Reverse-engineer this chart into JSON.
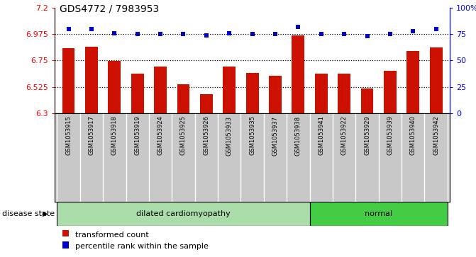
{
  "title": "GDS4772 / 7983953",
  "samples": [
    "GSM1053915",
    "GSM1053917",
    "GSM1053918",
    "GSM1053919",
    "GSM1053924",
    "GSM1053925",
    "GSM1053926",
    "GSM1053933",
    "GSM1053935",
    "GSM1053937",
    "GSM1053938",
    "GSM1053941",
    "GSM1053922",
    "GSM1053929",
    "GSM1053939",
    "GSM1053940",
    "GSM1053942"
  ],
  "bar_values": [
    6.855,
    6.865,
    6.748,
    6.635,
    6.695,
    6.545,
    6.46,
    6.695,
    6.645,
    6.62,
    6.965,
    6.635,
    6.635,
    6.51,
    6.66,
    6.83,
    6.86
  ],
  "percentile_values": [
    80,
    80,
    76,
    75,
    75,
    75,
    74,
    76,
    75,
    75,
    82,
    75,
    75,
    73,
    75,
    78,
    80
  ],
  "ylim_left": [
    6.3,
    7.2
  ],
  "ylim_right": [
    0,
    100
  ],
  "yticks_left": [
    6.3,
    6.525,
    6.75,
    6.975,
    7.2
  ],
  "yticks_right": [
    0,
    25,
    50,
    75,
    100
  ],
  "ytick_labels_left": [
    "6.3",
    "6.525",
    "6.75",
    "6.975",
    "7.2"
  ],
  "ytick_labels_right": [
    "0",
    "25",
    "50",
    "75",
    "100%"
  ],
  "hlines": [
    6.975,
    6.75,
    6.525
  ],
  "bar_color": "#cc1100",
  "dot_color": "#0000cc",
  "disease_state_label": "disease state",
  "categories": [
    {
      "label": "dilated cardiomyopathy",
      "start": 0,
      "end": 11,
      "color": "#aaddaa"
    },
    {
      "label": "normal",
      "start": 11,
      "end": 17,
      "color": "#44cc44"
    }
  ],
  "legend": [
    {
      "label": "transformed count",
      "color": "#cc1100"
    },
    {
      "label": "percentile rank within the sample",
      "color": "#0000cc"
    }
  ],
  "sample_bg_color": "#c8c8c8",
  "plot_bg_color": "#ffffff",
  "title_fontsize": 10,
  "tick_fontsize": 8,
  "sample_fontsize": 6.0,
  "legend_fontsize": 8,
  "disease_fontsize": 8
}
